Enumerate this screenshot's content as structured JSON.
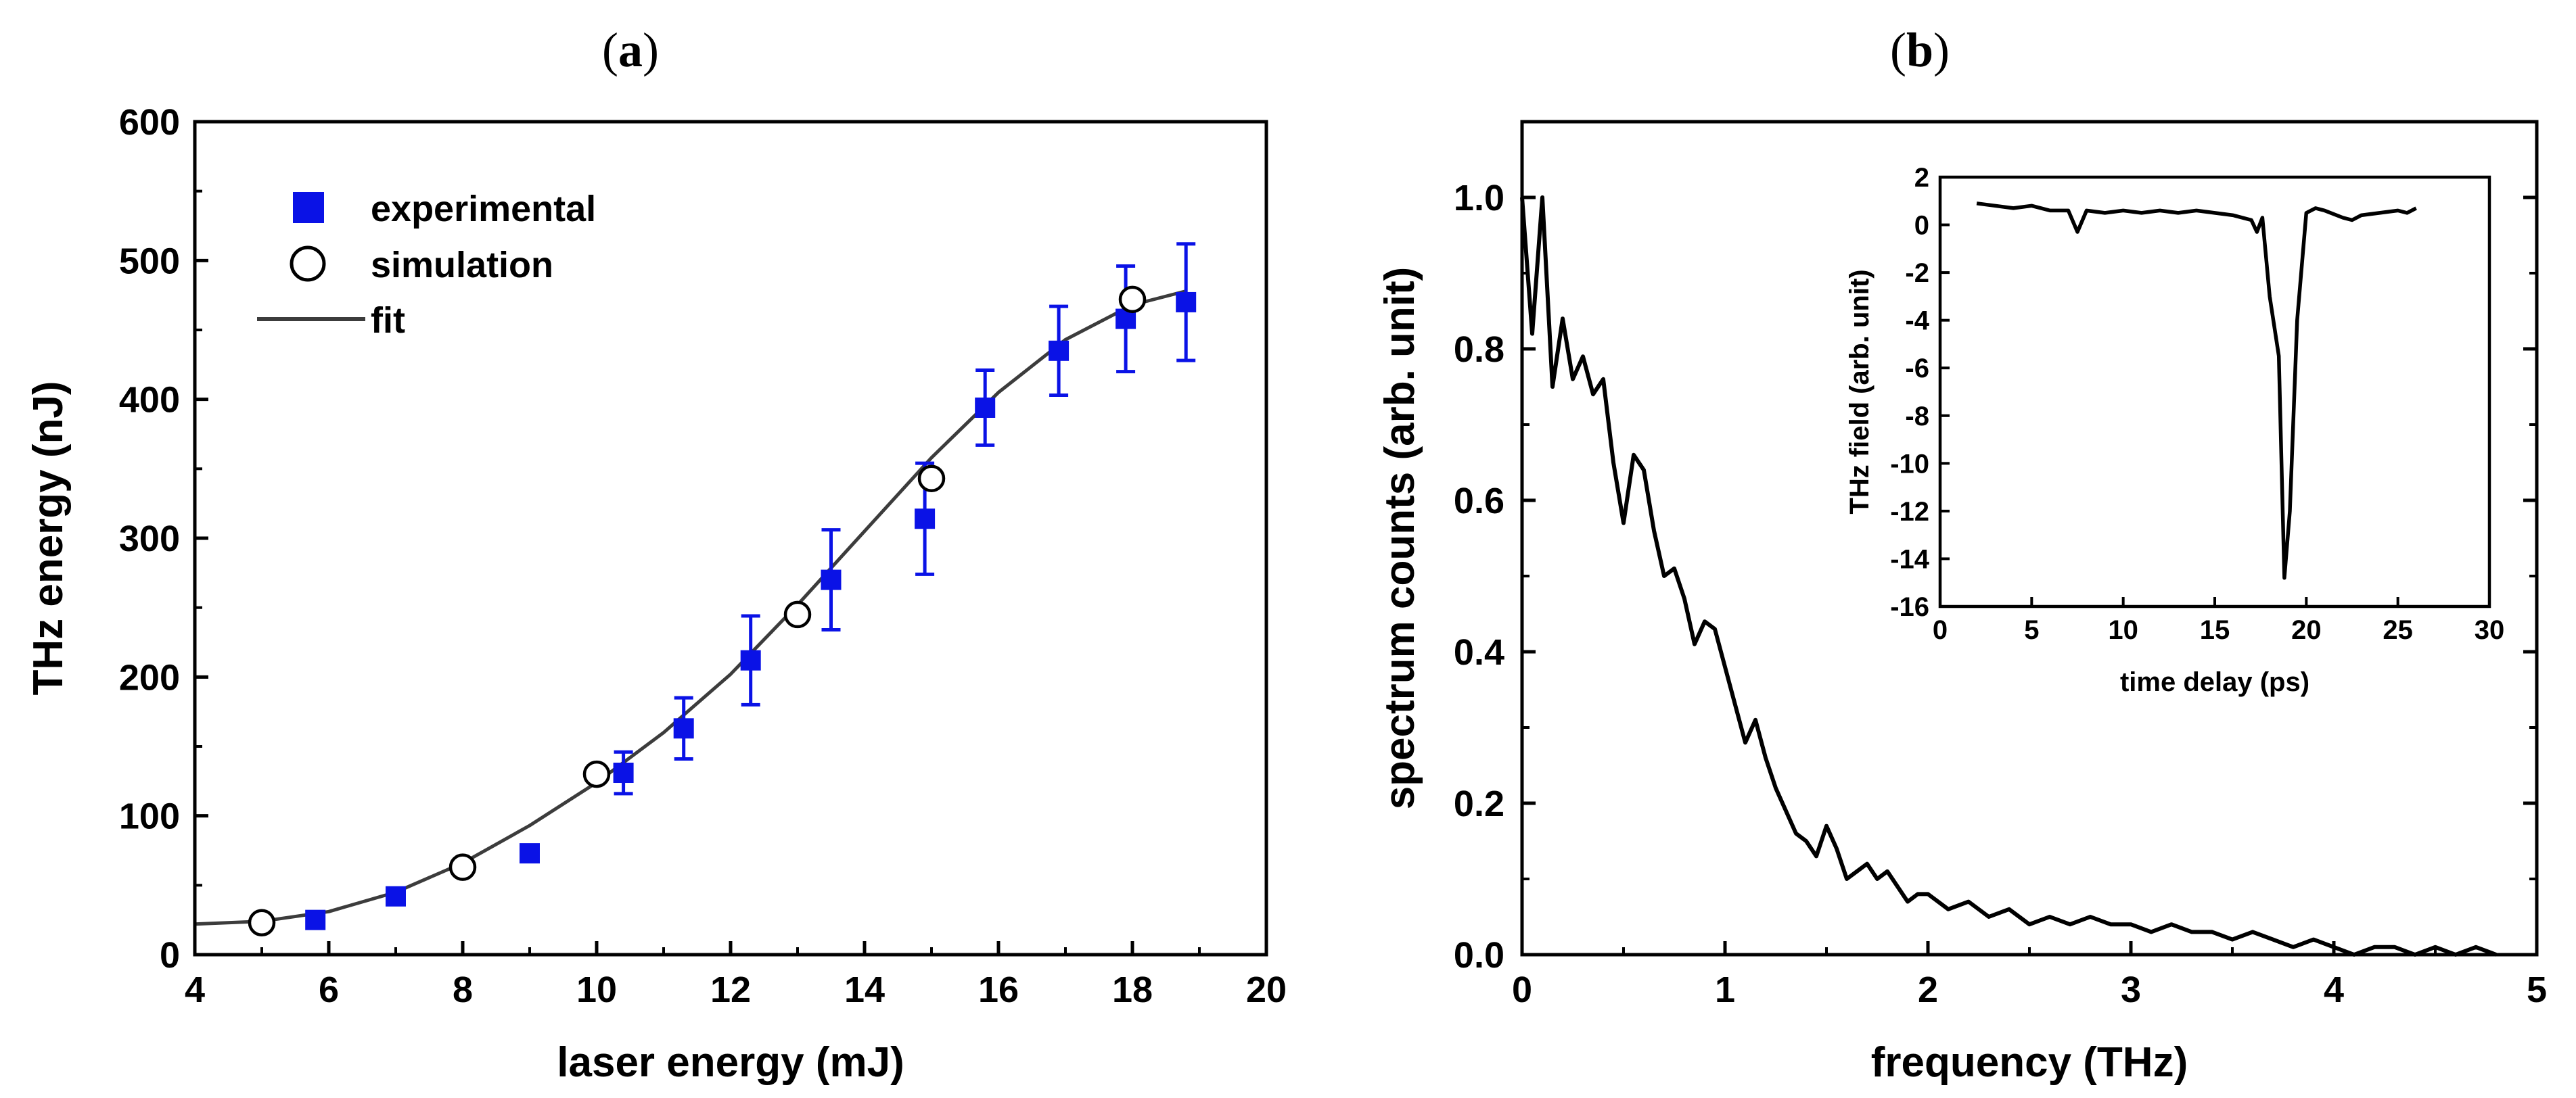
{
  "colors": {
    "experimental": "#0a12e6",
    "fit": "#3c3c3c",
    "axis": "#000000",
    "background": "#ffffff"
  },
  "panel_a": {
    "label_open": "(",
    "label_letter": "a",
    "label_close": ")"
  },
  "panel_b": {
    "label_open": "(",
    "label_letter": "b",
    "label_close": ")"
  },
  "chart_data": [
    {
      "type": "scatter",
      "panel": "a",
      "title": "(a)",
      "xlabel": "laser energy (mJ)",
      "ylabel": "THz energy (nJ)",
      "xlim": [
        4,
        20
      ],
      "ylim": [
        0,
        600
      ],
      "xticks": [
        4,
        6,
        8,
        10,
        12,
        14,
        16,
        18,
        20
      ],
      "yticks": [
        0,
        100,
        200,
        300,
        400,
        500,
        600
      ],
      "legend": {
        "position": "top-left",
        "entries": [
          "experimental",
          "simulation",
          "fit"
        ]
      },
      "series": [
        {
          "name": "experimental",
          "marker": "filled-square",
          "x": [
            5.8,
            7.0,
            9.0,
            10.4,
            11.3,
            12.3,
            13.5,
            14.9,
            15.8,
            16.9,
            17.9,
            18.8
          ],
          "y": [
            25,
            42,
            73,
            131,
            163,
            212,
            270,
            314,
            394,
            435,
            458,
            470
          ],
          "err": [
            0,
            0,
            0,
            15,
            22,
            32,
            36,
            40,
            27,
            32,
            38,
            42
          ]
        },
        {
          "name": "simulation",
          "marker": "open-circle",
          "x": [
            5.0,
            8.0,
            10.0,
            13.0,
            15.0,
            18.0
          ],
          "y": [
            23,
            63,
            130,
            245,
            343,
            472
          ]
        },
        {
          "name": "fit",
          "marker": "line",
          "x": [
            4.0,
            5.0,
            6.0,
            7.0,
            8.0,
            9.0,
            10.0,
            11.0,
            12.0,
            13.0,
            14.0,
            15.0,
            16.0,
            17.0,
            18.0,
            18.8
          ],
          "y": [
            22,
            24,
            31,
            45,
            66,
            93,
            124,
            160,
            202,
            252,
            305,
            358,
            405,
            443,
            468,
            478
          ]
        }
      ]
    },
    {
      "type": "line",
      "panel": "b",
      "title": "(b)",
      "xlabel": "frequency (THz)",
      "ylabel": "spectrum counts (arb. unit)",
      "xlim": [
        0,
        5
      ],
      "ylim": [
        0,
        1.1
      ],
      "xticks": [
        0,
        1,
        2,
        3,
        4,
        5
      ],
      "yticks": [
        0.0,
        0.2,
        0.4,
        0.6,
        0.8,
        1.0
      ],
      "ytick_labels": [
        "0.0",
        "0.2",
        "0.4",
        "0.6",
        "0.8",
        "1.0"
      ],
      "series": [
        {
          "name": "spectrum",
          "x": [
            0.0,
            0.05,
            0.1,
            0.15,
            0.2,
            0.25,
            0.3,
            0.35,
            0.4,
            0.45,
            0.5,
            0.55,
            0.6,
            0.65,
            0.7,
            0.75,
            0.8,
            0.85,
            0.9,
            0.95,
            1.0,
            1.05,
            1.1,
            1.15,
            1.2,
            1.25,
            1.3,
            1.35,
            1.4,
            1.45,
            1.5,
            1.55,
            1.6,
            1.65,
            1.7,
            1.75,
            1.8,
            1.85,
            1.9,
            1.95,
            2.0,
            2.1,
            2.2,
            2.3,
            2.4,
            2.5,
            2.6,
            2.7,
            2.8,
            2.9,
            3.0,
            3.1,
            3.2,
            3.3,
            3.4,
            3.5,
            3.6,
            3.7,
            3.8,
            3.9,
            4.0,
            4.1,
            4.2,
            4.3,
            4.4,
            4.5,
            4.6,
            4.7,
            4.8
          ],
          "y": [
            1.0,
            0.82,
            1.0,
            0.75,
            0.84,
            0.76,
            0.79,
            0.74,
            0.76,
            0.65,
            0.57,
            0.66,
            0.64,
            0.56,
            0.5,
            0.51,
            0.47,
            0.41,
            0.44,
            0.43,
            0.38,
            0.33,
            0.28,
            0.31,
            0.26,
            0.22,
            0.19,
            0.16,
            0.15,
            0.13,
            0.17,
            0.14,
            0.1,
            0.11,
            0.12,
            0.1,
            0.11,
            0.09,
            0.07,
            0.08,
            0.08,
            0.06,
            0.07,
            0.05,
            0.06,
            0.04,
            0.05,
            0.04,
            0.05,
            0.04,
            0.04,
            0.03,
            0.04,
            0.03,
            0.03,
            0.02,
            0.03,
            0.02,
            0.01,
            0.02,
            0.01,
            0.0,
            0.01,
            0.01,
            0.0,
            0.01,
            0.0,
            0.01,
            0.0
          ]
        }
      ]
    },
    {
      "type": "line",
      "panel": "b-inset",
      "xlabel": "time delay (ps)",
      "ylabel": "THz field (arb. unit)",
      "xlim": [
        0,
        30
      ],
      "ylim": [
        -16,
        2
      ],
      "xticks": [
        0,
        5,
        10,
        15,
        20,
        25,
        30
      ],
      "yticks": [
        2,
        0,
        -2,
        -4,
        -6,
        -8,
        -10,
        -12,
        -14,
        -16
      ],
      "series": [
        {
          "name": "THz field",
          "x": [
            2,
            3,
            4,
            5,
            6,
            7,
            7.5,
            8,
            9,
            10,
            11,
            12,
            13,
            14,
            15,
            16,
            17,
            17.3,
            17.6,
            18,
            18.5,
            18.8,
            19.1,
            19.5,
            20,
            20.5,
            21,
            22,
            22.5,
            23,
            24,
            25,
            25.5,
            26
          ],
          "y": [
            0.9,
            0.8,
            0.7,
            0.8,
            0.6,
            0.6,
            -0.3,
            0.6,
            0.5,
            0.6,
            0.5,
            0.6,
            0.5,
            0.6,
            0.5,
            0.4,
            0.2,
            -0.3,
            0.3,
            -3.0,
            -5.5,
            -14.8,
            -12.0,
            -4.0,
            0.5,
            0.7,
            0.6,
            0.3,
            0.2,
            0.4,
            0.5,
            0.6,
            0.5,
            0.7
          ]
        }
      ]
    }
  ]
}
